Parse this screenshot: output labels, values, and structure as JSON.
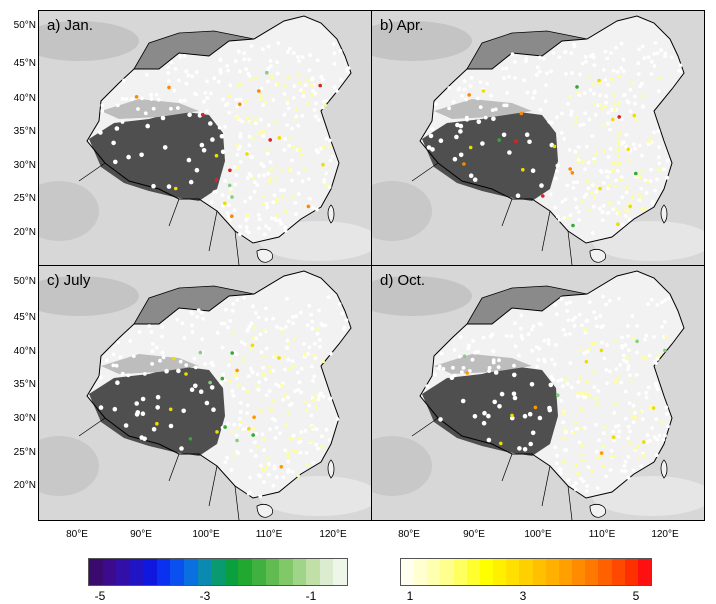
{
  "panels": [
    {
      "id": "jan",
      "title": "a) Jan."
    },
    {
      "id": "apr",
      "title": "b) Apr."
    },
    {
      "id": "jul",
      "title": "c) July"
    },
    {
      "id": "oct",
      "title": "d) Oct."
    }
  ],
  "lat_labels": [
    "50°N",
    "45°N",
    "40°N",
    "35°N",
    "30°N",
    "25°N",
    "20°N"
  ],
  "lon_labels": [
    "80°E",
    "90°E",
    "100°E",
    "110°E",
    "120°E"
  ],
  "colorbar": {
    "negative_labels": [
      "-5",
      "-3",
      "-1"
    ],
    "positive_labels": [
      "1",
      "3",
      "5"
    ],
    "negative_colors": [
      "#3a0a6e",
      "#3c0a8c",
      "#3210a8",
      "#2014c4",
      "#1018e0",
      "#0a30f0",
      "#0a50f0",
      "#0a70e0",
      "#0a8ab0",
      "#0a9a70",
      "#0aa040",
      "#20a830",
      "#40b040",
      "#60bc50",
      "#80c868",
      "#a0d488",
      "#c0e0a8",
      "#dcecd0",
      "#eef6ea"
    ],
    "positive_colors": [
      "#fffff0",
      "#ffffd0",
      "#ffffb0",
      "#ffff90",
      "#ffff60",
      "#ffff30",
      "#ffff00",
      "#fff000",
      "#ffe000",
      "#ffd000",
      "#ffc000",
      "#ffb000",
      "#ffa000",
      "#ff8c00",
      "#ff7800",
      "#ff6000",
      "#ff4800",
      "#ff3000",
      "#ff1010"
    ]
  }
}
